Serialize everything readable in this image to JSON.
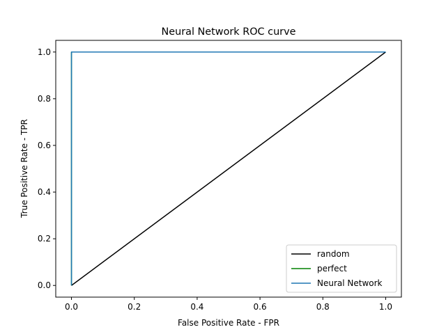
{
  "chart_data": {
    "type": "line",
    "title": "Neural Network ROC curve",
    "xlabel": "False Positive Rate - FPR",
    "ylabel": "True Positive Rate - TPR",
    "xlim": [
      -0.05,
      1.05
    ],
    "ylim": [
      -0.05,
      1.05
    ],
    "xticks": [
      0.0,
      0.2,
      0.4,
      0.6,
      0.8,
      1.0
    ],
    "yticks": [
      0.0,
      0.2,
      0.4,
      0.6,
      0.8,
      1.0
    ],
    "xtick_labels": [
      "0.0",
      "0.2",
      "0.4",
      "0.6",
      "0.8",
      "1.0"
    ],
    "ytick_labels": [
      "0.0",
      "0.2",
      "0.4",
      "0.6",
      "0.8",
      "1.0"
    ],
    "grid": false,
    "legend_position": "lower-right",
    "series": [
      {
        "name": "random",
        "color": "#000000",
        "x": [
          0,
          1
        ],
        "y": [
          0,
          1
        ]
      },
      {
        "name": "perfect",
        "color": "#008000",
        "x": [
          0,
          0,
          1
        ],
        "y": [
          0,
          1,
          1
        ]
      },
      {
        "name": "Neural Network",
        "color": "#1f77b4",
        "x": [
          0,
          0,
          1
        ],
        "y": [
          0,
          1,
          1
        ]
      }
    ]
  }
}
